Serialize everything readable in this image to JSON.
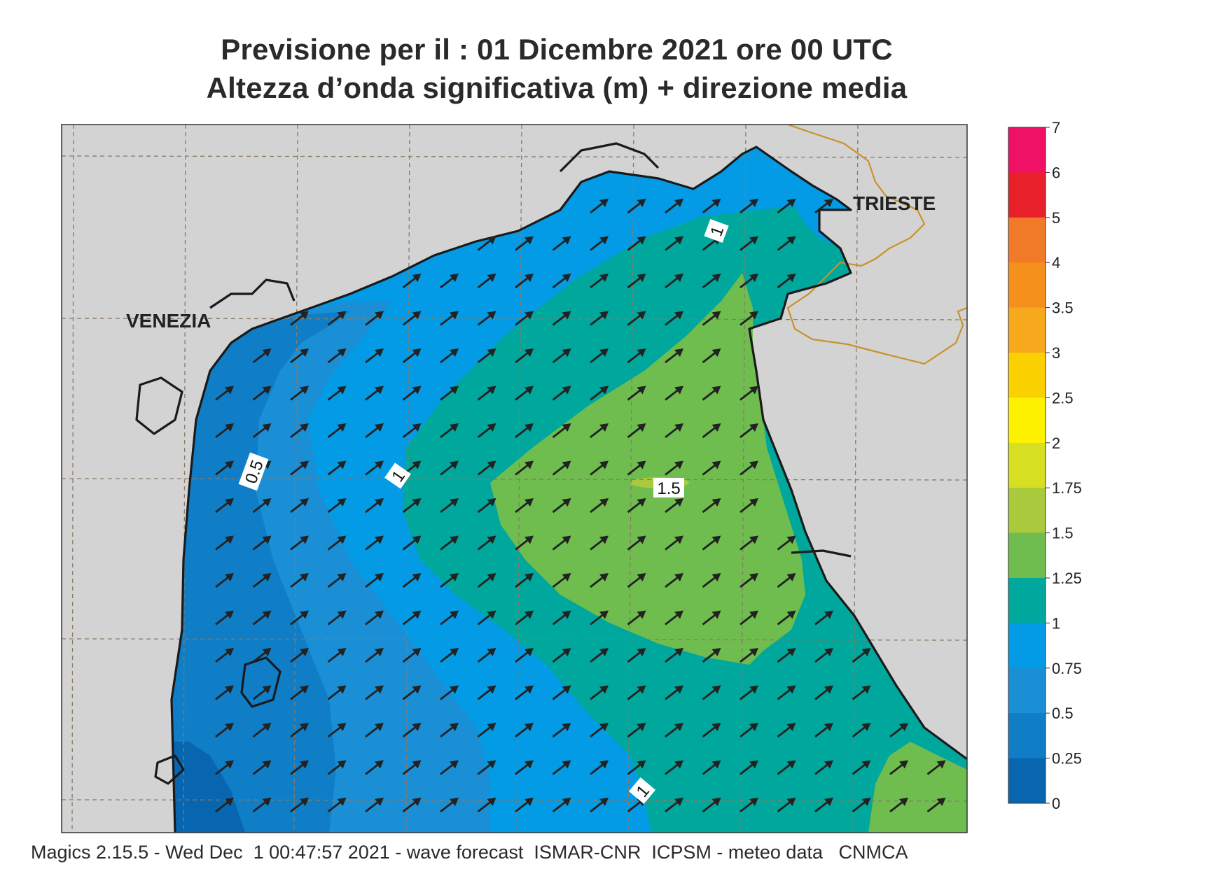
{
  "title": {
    "line1": "Previsione per il  :  01 Dicembre  2021   ore 00 UTC",
    "line2": "Altezza d’onda significativa (m) + direzione media"
  },
  "cities": {
    "venezia": "VENEZIA",
    "trieste": "TRIESTE"
  },
  "contour_labels": {
    "half_meter": "0.5",
    "one_a": "1",
    "one_b": "1",
    "one_c": "1",
    "one_five": "1.5"
  },
  "legend": {
    "ticks": [
      "7",
      "6",
      "5",
      "4",
      "3.5",
      "3",
      "2.5",
      "2",
      "1.75",
      "1.5",
      "1.25",
      "1",
      "0.75",
      "0.5",
      "0.25",
      "0"
    ],
    "colors_top_to_bottom": [
      "#ee1166",
      "#e8202a",
      "#f07a28",
      "#f5901c",
      "#f7a81c",
      "#fbd000",
      "#fff200",
      "#d7df23",
      "#a8ca3c",
      "#6fbd4f",
      "#00a79d",
      "#039be5",
      "#1b8fd6",
      "#0f7ec6",
      "#0866b0"
    ]
  },
  "colors": {
    "land": "#d3d3d3",
    "coast": "#1a1a1a",
    "border": "#c8922a",
    "grid": "#8a7a66",
    "arrow": "#222222"
  },
  "footer": "Magics 2.15.5 - Wed Dec  1 00:47:57 2021 - wave forecast  ISMAR-CNR  ICPSM - meteo data   CNMCA"
}
